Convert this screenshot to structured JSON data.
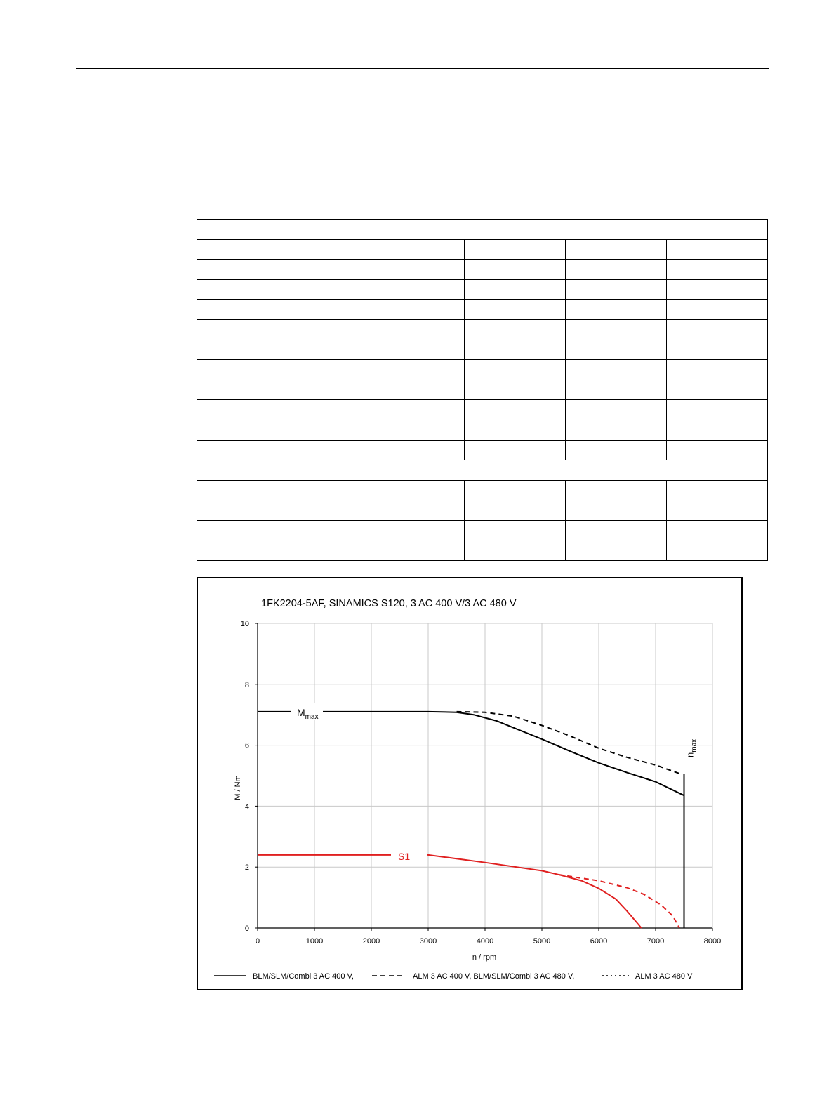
{
  "chart_data": {
    "type": "line",
    "title": "1FK2204-5AF,  SINAMICS S120,  3 AC 400 V/3 AC 480 V",
    "x_label": "n / rpm",
    "y_label": "M / Nm",
    "xlim": [
      0,
      8000
    ],
    "xticks": [
      0,
      1000,
      2000,
      3000,
      4000,
      5000,
      6000,
      7000,
      8000
    ],
    "ylim": [
      0,
      10
    ],
    "yticks": [
      0,
      2,
      4,
      6,
      8,
      10
    ],
    "grid": true,
    "annotations": {
      "mmax": {
        "main": "M",
        "sub": "max"
      },
      "s1": "S1",
      "nmax": {
        "main": "n",
        "sub": "max"
      }
    },
    "series": [
      {
        "name": "BLM/SLM/Combi 3 AC 400 V,",
        "dash": "solid",
        "curves": [
          {
            "color": "#000000",
            "x": [
              0,
              3000,
              3500,
              3800,
              4200,
              4600,
              5000,
              5500,
              6000,
              6500,
              7000,
              7500
            ],
            "values": [
              7.1,
              7.1,
              7.08,
              7.0,
              6.8,
              6.5,
              6.2,
              5.8,
              5.42,
              5.1,
              4.8,
              4.35
            ]
          },
          {
            "color": "#000000",
            "x": [
              7500,
              7500
            ],
            "values": [
              0,
              5.05
            ]
          },
          {
            "color": "#e02020",
            "x": [
              0,
              3000,
              4000,
              5000,
              5300,
              5700,
              6000,
              6300,
              6500,
              6750
            ],
            "values": [
              2.4,
              2.4,
              2.15,
              1.88,
              1.75,
              1.55,
              1.3,
              0.95,
              0.55,
              0
            ]
          }
        ]
      },
      {
        "name": "ALM 3 AC 400 V, BLM/SLM/Combi 3 AC 480 V,",
        "dash": "dashed",
        "curves": [
          {
            "color": "#000000",
            "x": [
              3500,
              4000,
              4500,
              5000,
              5500,
              6000,
              6500,
              7000,
              7450
            ],
            "values": [
              7.1,
              7.08,
              6.95,
              6.65,
              6.3,
              5.9,
              5.6,
              5.35,
              5.05
            ]
          },
          {
            "color": "#e02020",
            "x": [
              5300,
              6000,
              6500,
              6800,
              7100,
              7300,
              7420
            ],
            "values": [
              1.75,
              1.55,
              1.32,
              1.1,
              0.75,
              0.4,
              0
            ]
          }
        ]
      },
      {
        "name": "ALM 3 AC 480 V",
        "dash": "dotted",
        "curves": []
      }
    ]
  }
}
